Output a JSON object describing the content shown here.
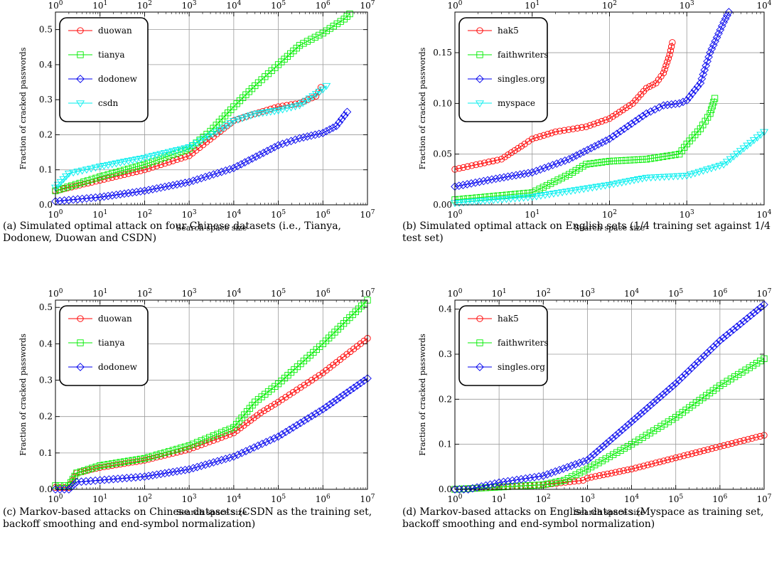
{
  "chart_data": [
    {
      "id": "a",
      "type": "line",
      "xscale": "log",
      "xlim": [
        1,
        10000000
      ],
      "ylim": [
        0,
        0.55
      ],
      "yticks": [
        0.0,
        0.1,
        0.2,
        0.3,
        0.4,
        0.5
      ],
      "ytick_labels": [
        "0.0",
        "0.1",
        "0.2",
        "0.3",
        "0.4",
        "0.5"
      ],
      "xticks": [
        1,
        10,
        100,
        1000,
        10000,
        100000,
        1000000,
        10000000
      ],
      "xtick_labels": [
        "10^0",
        "10^1",
        "10^2",
        "10^3",
        "10^4",
        "10^5",
        "10^6",
        "10^7"
      ],
      "xlabel": "Search space size",
      "ylabel": "Fraction of cracked passwords",
      "grid": true,
      "legend_position": "top-left",
      "caption": "(a)  Simulated optimal attack on four Chinese datasets (i.e., Tianya, Dodonew, Duowan and CSDN)",
      "series": [
        {
          "name": "duowan",
          "color": "#ff0000",
          "marker": "circle",
          "x": [
            1,
            10,
            100,
            1000,
            5000,
            10000,
            30000,
            100000,
            300000,
            700000,
            900000
          ],
          "y": [
            0.04,
            0.07,
            0.1,
            0.14,
            0.21,
            0.24,
            0.26,
            0.28,
            0.29,
            0.31,
            0.335
          ]
        },
        {
          "name": "tianya",
          "color": "#00ee00",
          "marker": "square",
          "x": [
            1,
            10,
            100,
            1000,
            3000,
            10000,
            30000,
            100000,
            300000,
            1000000,
            3000000,
            4000000
          ],
          "y": [
            0.04,
            0.08,
            0.115,
            0.16,
            0.21,
            0.28,
            0.34,
            0.4,
            0.455,
            0.49,
            0.53,
            0.545
          ]
        },
        {
          "name": "dodonew",
          "color": "#0000ee",
          "marker": "diamond",
          "x": [
            1,
            10,
            100,
            1000,
            10000,
            100000,
            300000,
            1000000,
            2000000,
            3500000
          ],
          "y": [
            0.01,
            0.022,
            0.04,
            0.065,
            0.105,
            0.17,
            0.19,
            0.205,
            0.225,
            0.265
          ]
        },
        {
          "name": "csdn",
          "color": "#00eeee",
          "marker": "triangle-down",
          "x": [
            1,
            2,
            10,
            100,
            1000,
            5000,
            10000,
            30000,
            100000,
            300000,
            1000000,
            1200000
          ],
          "y": [
            0.05,
            0.09,
            0.11,
            0.135,
            0.165,
            0.215,
            0.24,
            0.26,
            0.27,
            0.285,
            0.33,
            0.34
          ]
        }
      ]
    },
    {
      "id": "b",
      "type": "line",
      "xscale": "log",
      "xlim": [
        1,
        10000
      ],
      "ylim": [
        0,
        0.19
      ],
      "yticks": [
        0.0,
        0.05,
        0.1,
        0.15
      ],
      "ytick_labels": [
        "0.00",
        "0.05",
        "0.10",
        "0.15"
      ],
      "xticks": [
        1,
        10,
        100,
        1000,
        10000
      ],
      "xtick_labels": [
        "10^0",
        "10^1",
        "10^2",
        "10^3",
        "10^4"
      ],
      "xlabel": "Search space size",
      "ylabel": "Fraction of cracked passwords",
      "grid": true,
      "legend_position": "top-left",
      "caption": "(b)  Simulated optimal attack on English sets (1/4 training set against 1/4 test set)",
      "series": [
        {
          "name": "hak5",
          "color": "#ff0000",
          "marker": "circle",
          "x": [
            1,
            4,
            8,
            10,
            20,
            50,
            100,
            200,
            300,
            400,
            500,
            600,
            650
          ],
          "y": [
            0.035,
            0.045,
            0.06,
            0.065,
            0.072,
            0.077,
            0.085,
            0.1,
            0.115,
            0.12,
            0.13,
            0.148,
            0.16
          ]
        },
        {
          "name": "faithwriters",
          "color": "#00ee00",
          "marker": "square",
          "x": [
            1,
            10,
            30,
            50,
            100,
            300,
            800,
            1000,
            1500,
            2000,
            2300
          ],
          "y": [
            0.005,
            0.012,
            0.03,
            0.04,
            0.043,
            0.045,
            0.05,
            0.06,
            0.075,
            0.09,
            0.105
          ]
        },
        {
          "name": "singles.org",
          "color": "#0000ee",
          "marker": "diamond",
          "x": [
            1,
            3,
            10,
            30,
            100,
            300,
            500,
            800,
            1000,
            1500,
            2000,
            3000,
            3500
          ],
          "y": [
            0.018,
            0.025,
            0.032,
            0.045,
            0.065,
            0.09,
            0.098,
            0.1,
            0.103,
            0.12,
            0.15,
            0.18,
            0.19
          ]
        },
        {
          "name": "myspace",
          "color": "#00eeee",
          "marker": "triangle-down",
          "x": [
            1,
            10,
            100,
            300,
            1000,
            3000,
            10000
          ],
          "y": [
            0.002,
            0.008,
            0.02,
            0.027,
            0.029,
            0.04,
            0.072
          ]
        }
      ]
    },
    {
      "id": "c",
      "type": "line",
      "xscale": "log",
      "xlim": [
        1,
        10000000
      ],
      "ylim": [
        0,
        0.52
      ],
      "yticks": [
        0.0,
        0.1,
        0.2,
        0.3,
        0.4,
        0.5
      ],
      "ytick_labels": [
        "0.0",
        "0.1",
        "0.2",
        "0.3",
        "0.4",
        "0.5"
      ],
      "xticks": [
        1,
        10,
        100,
        1000,
        10000,
        100000,
        1000000,
        10000000
      ],
      "xtick_labels": [
        "10^0",
        "10^1",
        "10^2",
        "10^3",
        "10^4",
        "10^5",
        "10^6",
        "10^7"
      ],
      "xlabel": "Search space size",
      "ylabel": "Fraction of cracked passwords",
      "grid": true,
      "legend_position": "top-left",
      "caption": "(c)  Markov-based attacks on Chinese datasets (CSDN as the training set, backoff smoothing and end-symbol normalization)",
      "series": [
        {
          "name": "duowan",
          "color": "#ff0000",
          "marker": "circle",
          "x": [
            1,
            2,
            3,
            10,
            100,
            1000,
            10000,
            40000,
            100000,
            1000000,
            10000000
          ],
          "y": [
            0.005,
            0.005,
            0.045,
            0.06,
            0.08,
            0.11,
            0.155,
            0.21,
            0.24,
            0.32,
            0.415
          ]
        },
        {
          "name": "tianya",
          "color": "#00ee00",
          "marker": "square",
          "x": [
            1,
            2,
            3,
            10,
            100,
            1000,
            10000,
            30000,
            100000,
            1000000,
            10000000
          ],
          "y": [
            0.01,
            0.01,
            0.045,
            0.065,
            0.085,
            0.12,
            0.17,
            0.24,
            0.29,
            0.4,
            0.52
          ]
        },
        {
          "name": "dodonew",
          "color": "#0000ee",
          "marker": "diamond",
          "x": [
            1,
            2,
            3,
            10,
            100,
            1000,
            10000,
            100000,
            1000000,
            10000000
          ],
          "y": [
            0.0,
            0.0,
            0.02,
            0.025,
            0.035,
            0.055,
            0.09,
            0.145,
            0.22,
            0.305
          ]
        }
      ]
    },
    {
      "id": "d",
      "type": "line",
      "xscale": "log",
      "xlim": [
        1,
        10000000
      ],
      "ylim": [
        0,
        0.42
      ],
      "yticks": [
        0.0,
        0.1,
        0.2,
        0.3,
        0.4
      ],
      "ytick_labels": [
        "0.0",
        "0.1",
        "0.2",
        "0.3",
        "0.4"
      ],
      "xticks": [
        1,
        10,
        100,
        1000,
        10000,
        100000,
        1000000,
        10000000
      ],
      "xtick_labels": [
        "10^0",
        "10^1",
        "10^2",
        "10^3",
        "10^4",
        "10^5",
        "10^6",
        "10^7"
      ],
      "xlabel": "Search space size",
      "ylabel": "Fraction of cracked passwords",
      "grid": true,
      "legend_position": "top-left",
      "caption": "(d)  Markov-based attacks on English datasets (Myspace as training set, backoff smoothing and end-symbol normalization)",
      "series": [
        {
          "name": "hak5",
          "color": "#ff0000",
          "marker": "circle",
          "x": [
            1,
            10,
            100,
            800,
            1000,
            10000,
            100000,
            1000000,
            10000000
          ],
          "y": [
            0.0,
            0.005,
            0.01,
            0.02,
            0.025,
            0.045,
            0.07,
            0.095,
            0.12
          ]
        },
        {
          "name": "faithwriters",
          "color": "#00ee00",
          "marker": "square",
          "x": [
            1,
            10,
            100,
            300,
            1000,
            10000,
            100000,
            1000000,
            10000000
          ],
          "y": [
            0.0,
            0.005,
            0.01,
            0.02,
            0.045,
            0.1,
            0.16,
            0.23,
            0.29
          ]
        },
        {
          "name": "singles.org",
          "color": "#0000ee",
          "marker": "diamond",
          "x": [
            1,
            2,
            10,
            100,
            1000,
            10000,
            100000,
            1000000,
            10000000
          ],
          "y": [
            0.0,
            0.0,
            0.015,
            0.03,
            0.065,
            0.15,
            0.235,
            0.33,
            0.41
          ]
        }
      ]
    }
  ]
}
